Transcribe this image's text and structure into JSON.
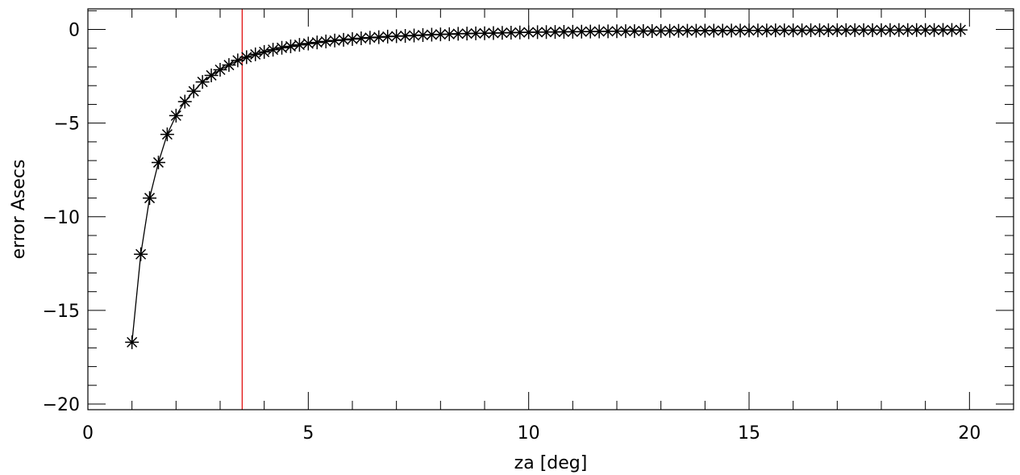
{
  "chart_data": {
    "type": "scatter",
    "title": "",
    "xlabel": "za [deg]",
    "ylabel": "error Asecs",
    "xlim": [
      0,
      21
    ],
    "ylim": [
      -20.3,
      1.1
    ],
    "x_ticks": [
      0,
      5,
      10,
      15,
      20
    ],
    "y_ticks": [
      0,
      -5,
      -10,
      -15,
      -20
    ],
    "x_minor_step": 1,
    "y_minor_step": 1,
    "grid": false,
    "legend": "none",
    "marker": "asterisk",
    "line": "solid",
    "colors": {
      "series": "#000000",
      "reference_line": "#e00000",
      "axes": "#000000"
    },
    "reference_line": {
      "x": 3.5
    },
    "series": [
      {
        "x": [
          1.0,
          1.2,
          1.4,
          1.6,
          1.8,
          2.0,
          2.2,
          2.4,
          2.6,
          2.8,
          3.0,
          3.2,
          3.4,
          3.6,
          3.8,
          4.0,
          4.2,
          4.4,
          4.6,
          4.8,
          5.0,
          5.2,
          5.4,
          5.6,
          5.8,
          6.0,
          6.2,
          6.4,
          6.6,
          6.8,
          7.0,
          7.2,
          7.4,
          7.6,
          7.8,
          8.0,
          8.2,
          8.4,
          8.6,
          8.8,
          9.0,
          9.2,
          9.4,
          9.6,
          9.8,
          10.0,
          10.2,
          10.4,
          10.6,
          10.8,
          11.0,
          11.2,
          11.4,
          11.6,
          11.8,
          12.0,
          12.2,
          12.4,
          12.6,
          12.8,
          13.0,
          13.2,
          13.4,
          13.6,
          13.8,
          14.0,
          14.2,
          14.4,
          14.6,
          14.8,
          15.0,
          15.2,
          15.4,
          15.6,
          15.8,
          16.0,
          16.2,
          16.4,
          16.6,
          16.8,
          17.0,
          17.2,
          17.4,
          17.6,
          17.8,
          18.0,
          18.2,
          18.4,
          18.6,
          18.8,
          19.0,
          19.2,
          19.4,
          19.6,
          19.8
        ],
        "y": [
          -16.7,
          -12.0,
          -9.0,
          -7.1,
          -5.6,
          -4.6,
          -3.85,
          -3.3,
          -2.8,
          -2.45,
          -2.15,
          -1.9,
          -1.65,
          -1.48,
          -1.33,
          -1.2,
          -1.08,
          -0.98,
          -0.9,
          -0.82,
          -0.75,
          -0.69,
          -0.64,
          -0.59,
          -0.55,
          -0.51,
          -0.47,
          -0.44,
          -0.41,
          -0.38,
          -0.36,
          -0.34,
          -0.32,
          -0.3,
          -0.28,
          -0.26,
          -0.25,
          -0.23,
          -0.22,
          -0.21,
          -0.2,
          -0.19,
          -0.18,
          -0.17,
          -0.16,
          -0.15,
          -0.145,
          -0.14,
          -0.13,
          -0.125,
          -0.12,
          -0.115,
          -0.11,
          -0.105,
          -0.1,
          -0.095,
          -0.09,
          -0.088,
          -0.085,
          -0.082,
          -0.078,
          -0.075,
          -0.072,
          -0.07,
          -0.067,
          -0.065,
          -0.062,
          -0.06,
          -0.058,
          -0.056,
          -0.054,
          -0.052,
          -0.05,
          -0.048,
          -0.047,
          -0.045,
          -0.044,
          -0.042,
          -0.041,
          -0.04,
          -0.038,
          -0.037,
          -0.036,
          -0.035,
          -0.034,
          -0.033,
          -0.032,
          -0.031,
          -0.03,
          -0.029,
          -0.028,
          -0.028,
          -0.027,
          -0.026,
          -0.025
        ]
      }
    ]
  }
}
